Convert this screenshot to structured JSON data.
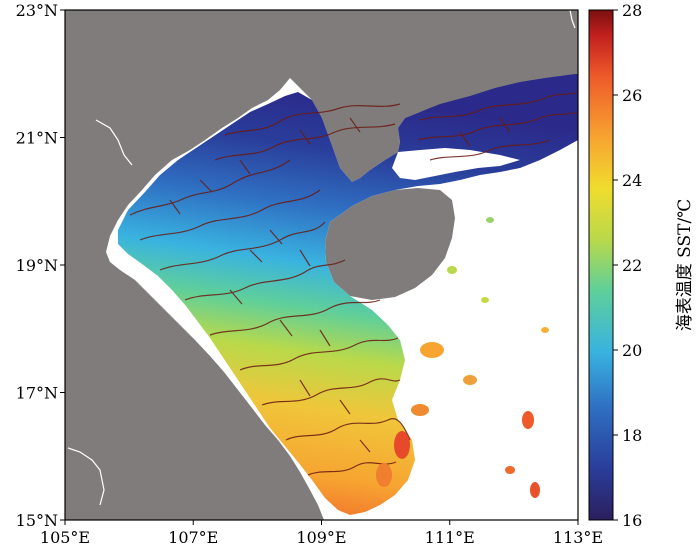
{
  "map": {
    "lon_ticks": [
      "105°E",
      "107°E",
      "109°E",
      "111°E",
      "113°E"
    ],
    "lat_ticks": [
      "15°N",
      "17°N",
      "19°N",
      "21°N",
      "23°N"
    ],
    "lon_range": [
      105,
      113
    ],
    "lat_range": [
      15,
      23
    ],
    "land_color": "#807c7c",
    "contour_color": "#6a1a12"
  },
  "colorbar": {
    "label": "海表温度 SST/℃",
    "ticks": [
      "16",
      "18",
      "20",
      "22",
      "24",
      "26",
      "28"
    ],
    "range": [
      16,
      28
    ],
    "colormap": "jet-like (blue to red)",
    "colors": [
      "#2b1f5c",
      "#2a3d9a",
      "#2f6fc2",
      "#39b3e0",
      "#5fcf9a",
      "#b9d94a",
      "#f0dc2e",
      "#f7a431",
      "#ee5a2a",
      "#c2201f",
      "#7a0f0f"
    ]
  }
}
